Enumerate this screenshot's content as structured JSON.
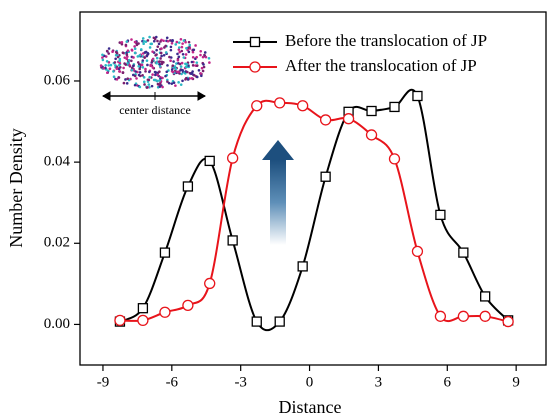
{
  "chart_data": {
    "type": "line",
    "x_label": "Distance",
    "y_label": "Number Density",
    "annotation": "center distance",
    "x": [
      -8.26,
      -7.26,
      -6.3,
      -5.3,
      -4.35,
      -3.35,
      -2.3,
      -1.3,
      -0.3,
      0.7,
      1.7,
      2.7,
      3.7,
      4.7,
      5.7,
      6.7,
      7.65,
      8.65
    ],
    "series": [
      {
        "name": "Before the translocation of JP",
        "color": "#000000",
        "marker": "square",
        "values": [
          0.0007,
          0.004,
          0.0177,
          0.034,
          0.0403,
          0.0207,
          0.0007,
          0.0007,
          0.0143,
          0.0364,
          0.0524,
          0.0526,
          0.0536,
          0.0563,
          0.027,
          0.0177,
          0.0069,
          0.001
        ]
      },
      {
        "name": "After the translocation of JP",
        "color": "#e8141b",
        "marker": "circle",
        "values": [
          0.001,
          0.001,
          0.003,
          0.0047,
          0.0101,
          0.041,
          0.0539,
          0.0546,
          0.0539,
          0.0504,
          0.0507,
          0.0467,
          0.0408,
          0.018,
          0.002,
          0.002,
          0.002,
          0.0007
        ]
      }
    ],
    "xlim": [
      -10,
      10.3
    ],
    "ylim": [
      -0.01,
      0.077
    ],
    "xticks": [
      -9,
      -6,
      -3,
      0,
      3,
      6,
      9
    ],
    "yticks": [
      {
        "value": 0,
        "label": "0.00"
      },
      {
        "value": 0.02,
        "label": "0.02"
      },
      {
        "value": 0.04,
        "label": "0.04"
      },
      {
        "value": 0.06,
        "label": "0.06"
      }
    ],
    "legend": "top-right"
  }
}
